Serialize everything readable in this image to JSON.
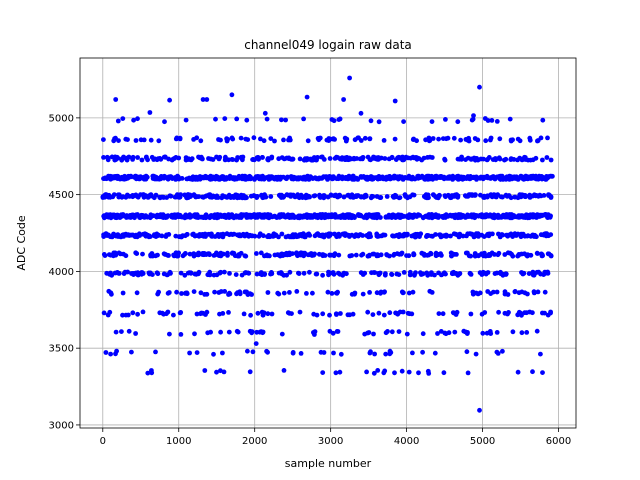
{
  "chart_data": {
    "type": "scatter",
    "title": "channel049 logain raw data",
    "xlabel": "sample number",
    "ylabel": "ADC Code",
    "xlim": [
      -300,
      6230
    ],
    "ylim": [
      2980,
      5390
    ],
    "x_ticks": [
      0,
      1000,
      2000,
      3000,
      4000,
      5000,
      6000
    ],
    "y_ticks": [
      3000,
      3500,
      4000,
      4500,
      5000
    ],
    "grid": true,
    "marker_color": "#0000ff",
    "sample_range": [
      0,
      5920
    ],
    "levels": [
      {
        "y": 3345,
        "share": 0.008
      },
      {
        "y": 3470,
        "share": 0.012
      },
      {
        "y": 3600,
        "share": 0.018
      },
      {
        "y": 3725,
        "share": 0.026
      },
      {
        "y": 3860,
        "share": 0.034
      },
      {
        "y": 3985,
        "share": 0.05
      },
      {
        "y": 4110,
        "share": 0.075
      },
      {
        "y": 4235,
        "share": 0.1
      },
      {
        "y": 4360,
        "share": 0.235
      },
      {
        "y": 4490,
        "share": 0.11
      },
      {
        "y": 4610,
        "share": 0.19
      },
      {
        "y": 4735,
        "share": 0.068
      },
      {
        "y": 4860,
        "share": 0.028
      },
      {
        "y": 4985,
        "share": 0.01
      }
    ],
    "outliers": [
      {
        "x": 3250,
        "y": 5260
      },
      {
        "x": 4960,
        "y": 5200
      },
      {
        "x": 1700,
        "y": 5150
      },
      {
        "x": 2690,
        "y": 5135
      },
      {
        "x": 170,
        "y": 5120
      },
      {
        "x": 880,
        "y": 5115
      },
      {
        "x": 1320,
        "y": 5120
      },
      {
        "x": 1370,
        "y": 5120
      },
      {
        "x": 3170,
        "y": 5120
      },
      {
        "x": 3850,
        "y": 5110
      },
      {
        "x": 2140,
        "y": 5030
      },
      {
        "x": 620,
        "y": 5035
      },
      {
        "x": 3400,
        "y": 5030
      },
      {
        "x": 4880,
        "y": 5015
      },
      {
        "x": 4960,
        "y": 3095
      },
      {
        "x": 2020,
        "y": 3530
      },
      {
        "x": 1960,
        "y": 3600
      }
    ]
  }
}
